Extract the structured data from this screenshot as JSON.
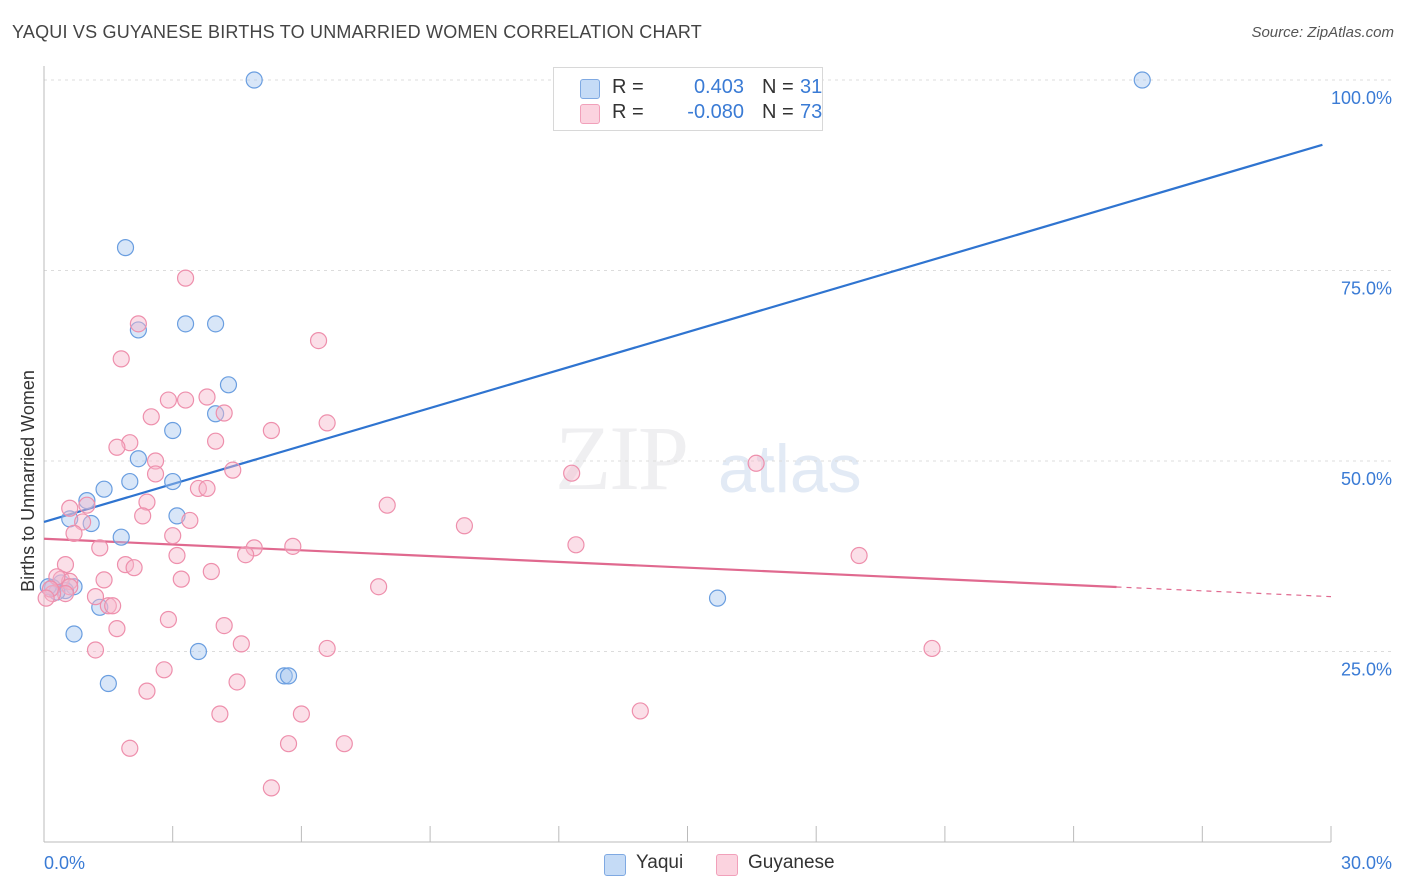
{
  "title": "YAQUI VS GUYANESE BIRTHS TO UNMARRIED WOMEN CORRELATION CHART",
  "source": "Source: ZipAtlas.com",
  "watermark": {
    "zip": "ZIP",
    "atlas": "atlas"
  },
  "legend": {
    "rows": [
      {
        "r_label": "R =",
        "r_value": "0.403",
        "n_label": "N =",
        "n_value": "31",
        "color": "#a9c8f0"
      },
      {
        "r_label": "R =",
        "r_value": "-0.080",
        "n_label": "N =",
        "n_value": "73",
        "color": "#f7b9cc"
      }
    ]
  },
  "bottom_legend": [
    {
      "label": "Yaqui",
      "color": "#a9c8f0"
    },
    {
      "label": "Guyanese",
      "color": "#f7b9cc"
    }
  ],
  "chart_data": {
    "type": "scatter",
    "ylabel": "Births to Unmarried Women",
    "xlim": [
      0,
      30
    ],
    "ylim": [
      0,
      105
    ],
    "x_tick_labels": {
      "min": "0.0%",
      "max": "30.0%"
    },
    "y_ticks": [
      {
        "value": 100,
        "label": "100.0%"
      },
      {
        "value": 75,
        "label": "75.0%"
      },
      {
        "value": 50,
        "label": "50.0%"
      },
      {
        "value": 25,
        "label": "25.0%"
      }
    ],
    "grid": true,
    "series": [
      {
        "name": "Yaqui",
        "color": "#6a9ee0",
        "fill": "#a9c8f0",
        "line_color": "#2f74d0",
        "trend": {
          "x0": 0,
          "y0": 42.0,
          "x1": 29.8,
          "y1": 91.5,
          "dash_from": null
        },
        "points": [
          [
            4.9,
            100.0
          ],
          [
            25.6,
            100.0
          ],
          [
            1.9,
            78.0
          ],
          [
            2.2,
            67.2
          ],
          [
            3.3,
            68.0
          ],
          [
            4.0,
            68.0
          ],
          [
            4.3,
            60.0
          ],
          [
            4.0,
            56.2
          ],
          [
            3.0,
            54.0
          ],
          [
            2.2,
            50.3
          ],
          [
            2.0,
            47.3
          ],
          [
            1.4,
            46.3
          ],
          [
            3.0,
            47.3
          ],
          [
            1.0,
            44.8
          ],
          [
            0.6,
            42.4
          ],
          [
            1.1,
            41.8
          ],
          [
            3.1,
            42.8
          ],
          [
            1.8,
            40.0
          ],
          [
            0.4,
            34.0
          ],
          [
            0.7,
            33.5
          ],
          [
            0.5,
            33.0
          ],
          [
            0.3,
            32.8
          ],
          [
            0.2,
            33.4
          ],
          [
            1.3,
            30.8
          ],
          [
            0.7,
            27.3
          ],
          [
            3.6,
            25.0
          ],
          [
            1.5,
            20.8
          ],
          [
            5.6,
            21.8
          ],
          [
            5.7,
            21.8
          ],
          [
            15.7,
            32.0
          ],
          [
            0.1,
            33.5
          ]
        ]
      },
      {
        "name": "Guyanese",
        "color": "#ee8fac",
        "fill": "#f7b9cc",
        "line_color": "#e0698f",
        "trend": {
          "x0": 0,
          "y0": 39.8,
          "x1": 30,
          "y1": 32.2,
          "dash_from": 25
        },
        "points": [
          [
            3.3,
            74.0
          ],
          [
            2.2,
            68.0
          ],
          [
            6.4,
            65.8
          ],
          [
            1.8,
            63.4
          ],
          [
            2.9,
            58.0
          ],
          [
            3.3,
            58.0
          ],
          [
            3.8,
            58.4
          ],
          [
            4.2,
            56.3
          ],
          [
            2.5,
            55.8
          ],
          [
            6.6,
            55.0
          ],
          [
            5.3,
            54.0
          ],
          [
            2.0,
            52.4
          ],
          [
            1.7,
            51.8
          ],
          [
            4.0,
            52.6
          ],
          [
            2.6,
            50.0
          ],
          [
            12.3,
            48.4
          ],
          [
            16.6,
            49.7
          ],
          [
            4.4,
            48.8
          ],
          [
            2.6,
            48.3
          ],
          [
            3.6,
            46.4
          ],
          [
            3.8,
            46.4
          ],
          [
            1.0,
            44.2
          ],
          [
            2.4,
            44.6
          ],
          [
            8.0,
            44.2
          ],
          [
            0.6,
            43.8
          ],
          [
            2.3,
            42.8
          ],
          [
            3.4,
            42.2
          ],
          [
            9.8,
            41.5
          ],
          [
            0.9,
            42.0
          ],
          [
            0.7,
            40.5
          ],
          [
            3.0,
            40.2
          ],
          [
            1.3,
            38.6
          ],
          [
            4.9,
            38.6
          ],
          [
            5.8,
            38.8
          ],
          [
            12.4,
            39.0
          ],
          [
            4.7,
            37.7
          ],
          [
            3.1,
            37.6
          ],
          [
            19.0,
            37.6
          ],
          [
            0.5,
            36.4
          ],
          [
            1.9,
            36.4
          ],
          [
            2.1,
            36.0
          ],
          [
            3.9,
            35.5
          ],
          [
            3.2,
            34.5
          ],
          [
            1.4,
            34.4
          ],
          [
            0.4,
            34.5
          ],
          [
            0.6,
            34.2
          ],
          [
            0.3,
            34.8
          ],
          [
            0.6,
            33.5
          ],
          [
            7.8,
            33.5
          ],
          [
            0.5,
            32.6
          ],
          [
            0.2,
            32.6
          ],
          [
            1.2,
            32.2
          ],
          [
            1.5,
            31.0
          ],
          [
            1.6,
            31.0
          ],
          [
            2.9,
            29.2
          ],
          [
            4.2,
            28.4
          ],
          [
            1.7,
            28.0
          ],
          [
            4.6,
            26.0
          ],
          [
            6.6,
            25.4
          ],
          [
            20.7,
            25.4
          ],
          [
            1.2,
            25.2
          ],
          [
            2.8,
            22.6
          ],
          [
            4.5,
            21.0
          ],
          [
            2.4,
            19.8
          ],
          [
            4.1,
            16.8
          ],
          [
            6.0,
            16.8
          ],
          [
            13.9,
            17.2
          ],
          [
            5.7,
            12.9
          ],
          [
            7.0,
            12.9
          ],
          [
            2.0,
            12.3
          ],
          [
            5.3,
            7.1
          ],
          [
            0.15,
            33.2
          ],
          [
            0.05,
            32.0
          ]
        ]
      }
    ]
  }
}
